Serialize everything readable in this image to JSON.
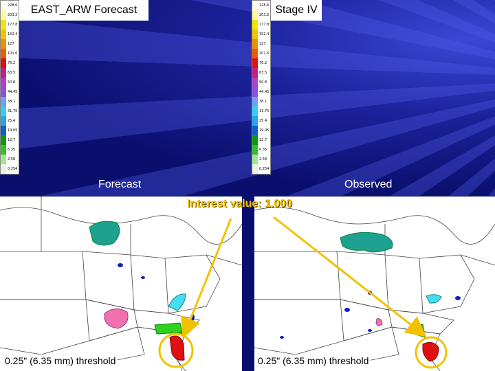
{
  "top": {
    "left_title": "EAST_ARW Forecast",
    "right_title": "Stage IV",
    "left_label": "Forecast",
    "right_label": "Observed"
  },
  "interest_text": "Interest value: 1.000",
  "threshold_left": "0.25\" (6.35 mm) threshold",
  "threshold_right": "0.25\" (6.35 mm) threshold",
  "colorbar": {
    "levels": [
      {
        "label": "228.6",
        "color": "#fffce8"
      },
      {
        "label": "203.2",
        "color": "#fff8a0"
      },
      {
        "label": "177.8",
        "color": "#f2e600"
      },
      {
        "label": "152.4",
        "color": "#f0c400"
      },
      {
        "label": "127",
        "color": "#f09000"
      },
      {
        "label": "101.6",
        "color": "#f05a00"
      },
      {
        "label": "76.2",
        "color": "#e01010"
      },
      {
        "label": "63.5",
        "color": "#c0208a"
      },
      {
        "label": "50.8",
        "color": "#b040c8"
      },
      {
        "label": "44.45",
        "color": "#8a50e0"
      },
      {
        "label": "38.1",
        "color": "#70a0f0"
      },
      {
        "label": "31.75",
        "color": "#30d0f0"
      },
      {
        "label": "25.4",
        "color": "#20a8e8"
      },
      {
        "label": "19.05",
        "color": "#1060d0"
      },
      {
        "label": "12.7",
        "color": "#0a9a10"
      },
      {
        "label": "6.35",
        "color": "#30c020"
      },
      {
        "label": "2.58",
        "color": "#a0e890"
      },
      {
        "label": "0.254",
        "color": "#e8f4e0"
      }
    ]
  },
  "colors": {
    "highlight": "#f2c200",
    "teal": "#20a090",
    "pink": "#f070b0",
    "cyan": "#40e0f0",
    "green": "#30d020",
    "red": "#e01010",
    "blue": "#1020c0"
  }
}
